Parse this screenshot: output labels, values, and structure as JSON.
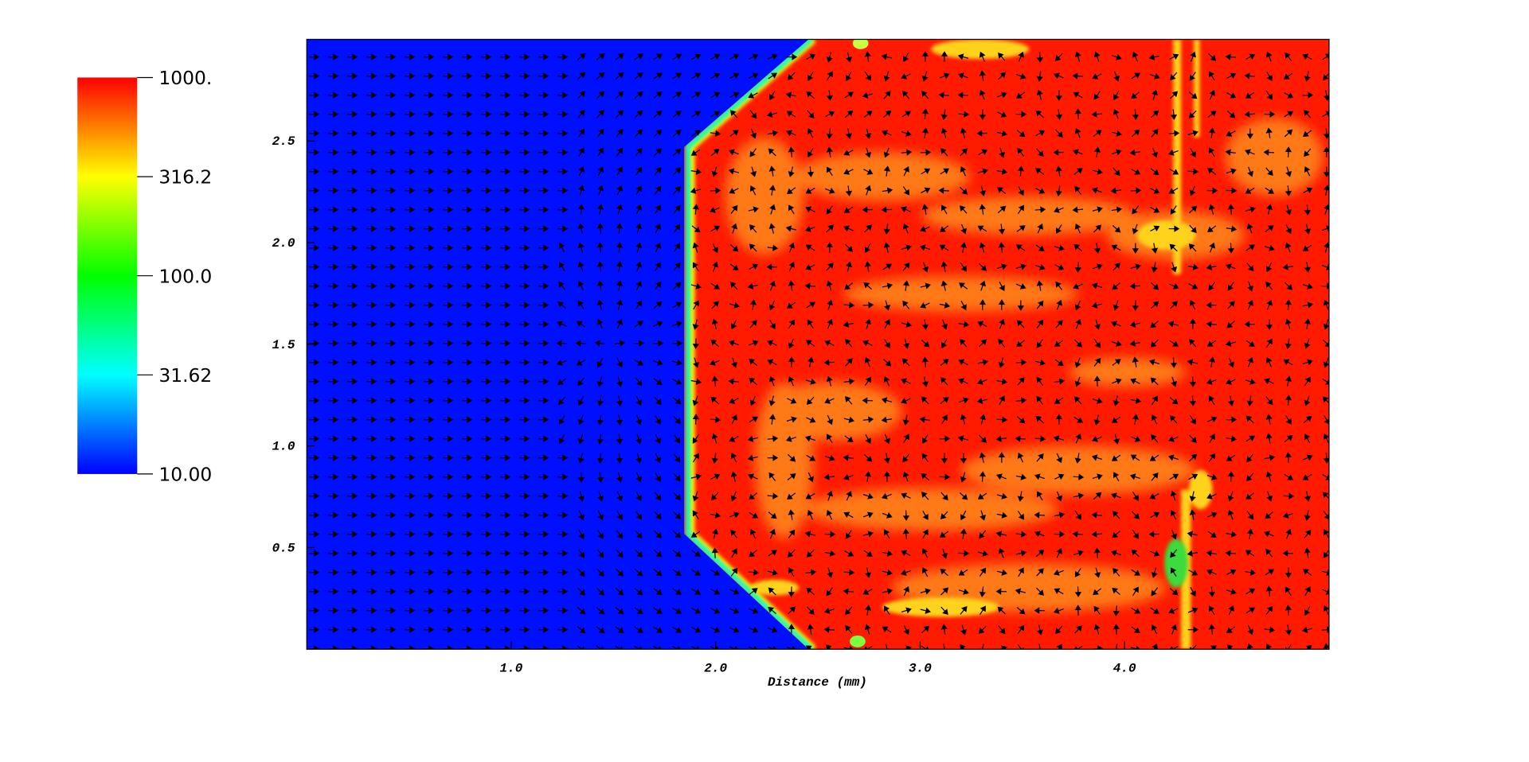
{
  "chart_data": {
    "type": "heatmap",
    "xlabel": "Distance (mm)",
    "xlim": [
      0,
      5
    ],
    "xticks": [
      {
        "value": 1,
        "label": "1.0"
      },
      {
        "value": 2,
        "label": "2.0"
      },
      {
        "value": 3,
        "label": "3.0"
      },
      {
        "value": 4,
        "label": "4.0"
      }
    ],
    "ylim": [
      0,
      3
    ],
    "yticks": [
      0.5,
      {
        "value": 1,
        "label": "1.0"
      },
      1.5,
      {
        "value": 2,
        "label": "2.0"
      },
      2.5
    ],
    "colorbar": {
      "lim": [
        10,
        1000
      ],
      "log": true,
      "colors": [
        "#0000ff",
        "#00ffff",
        "#00ff00",
        "#ffff00",
        "#ff0000"
      ],
      "ticks": [
        {
          "value": 1000,
          "label": "1000."
        },
        316.2,
        {
          "value": 100,
          "label": "100.0"
        },
        31.62,
        {
          "value": 10,
          "label": "10.00"
        }
      ]
    }
  }
}
